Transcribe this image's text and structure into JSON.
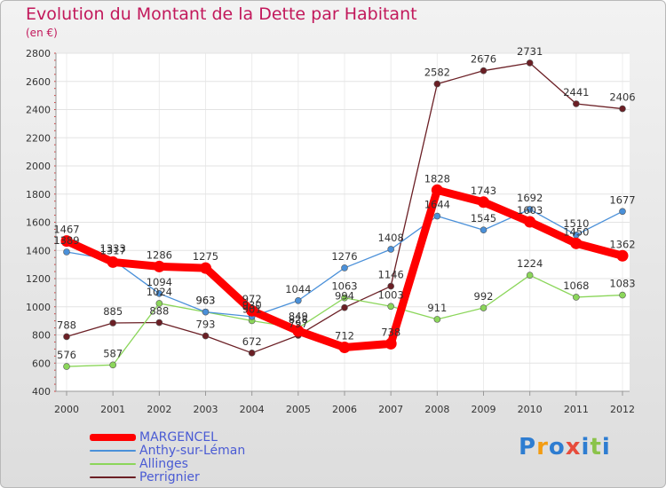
{
  "title": "Evolution du Montant de la Dette par Habitant",
  "subtitle": "(en €)",
  "logo": [
    "P",
    "r",
    "o",
    "x",
    "i",
    "t",
    "i"
  ],
  "logo_colors": [
    "#2e7dd1",
    "#f39c12",
    "#2e7dd1",
    "#e74c3c",
    "#2e7dd1",
    "#8bc34a",
    "#2e7dd1"
  ],
  "chart_data": {
    "type": "line",
    "categories": [
      "2000",
      "2001",
      "2002",
      "2003",
      "2004",
      "2005",
      "2006",
      "2007",
      "2008",
      "2009",
      "2010",
      "2011",
      "2012"
    ],
    "ylim": [
      400,
      2800
    ],
    "yticks": [
      400,
      600,
      800,
      1000,
      1200,
      1400,
      1600,
      1800,
      2000,
      2200,
      2400,
      2600,
      2800
    ],
    "grid": true,
    "series": [
      {
        "name": "MARGENCEL",
        "color": "#ff0000",
        "values": [
          1467,
          1317,
          1286,
          1275,
          972,
          828,
          712,
          738,
          1828,
          1743,
          1603,
          1450,
          1362
        ]
      },
      {
        "name": "Anthy-sur-Léman",
        "color": "#4a90d9",
        "values": [
          1389,
          1333,
          1094,
          963,
          930,
          1044,
          1276,
          1408,
          1644,
          1545,
          1692,
          1510,
          1677
        ]
      },
      {
        "name": "Allinges",
        "color": "#8bd65a",
        "values": [
          576,
          587,
          1024,
          963,
          901,
          849,
          1063,
          1003,
          911,
          992,
          1224,
          1068,
          1083
        ]
      },
      {
        "name": "Perrignier",
        "color": "#6b1f25",
        "values": [
          788,
          885,
          888,
          793,
          672,
          797,
          994,
          1146,
          2582,
          2676,
          2731,
          2441,
          2406
        ]
      }
    ]
  }
}
